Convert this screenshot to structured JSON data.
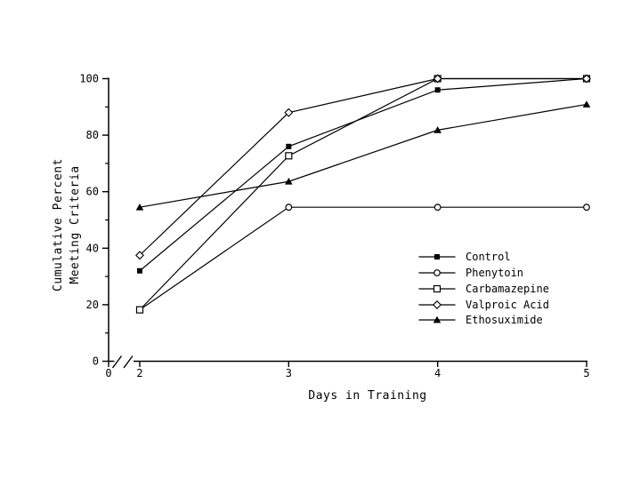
{
  "chart_data": {
    "type": "line",
    "title": "",
    "xlabel": "Days in Training",
    "ylabel": "Cumulative Percent Meeting Criteria",
    "ylabel_lines": [
      "Cumulative Percent",
      "Meeting Criteria"
    ],
    "x": [
      2,
      3,
      4,
      5
    ],
    "series": [
      {
        "name": "Control",
        "marker": "filled-square",
        "values": [
          32,
          76,
          96,
          100
        ]
      },
      {
        "name": "Phenytoin",
        "marker": "open-circle",
        "values": [
          18.2,
          54.5,
          54.5,
          54.5
        ]
      },
      {
        "name": "Carbamazepine",
        "marker": "open-square",
        "values": [
          18.2,
          72.7,
          100,
          100
        ]
      },
      {
        "name": "Valproic Acid",
        "marker": "open-diamond",
        "values": [
          37.5,
          88,
          100,
          100
        ]
      },
      {
        "name": "Ethosuximide",
        "marker": "filled-triangle",
        "values": [
          54.5,
          63.6,
          81.8,
          90.9
        ]
      }
    ],
    "xlim": [
      0,
      5
    ],
    "ylim": [
      0,
      100
    ],
    "xticks": [
      0,
      2,
      3,
      4,
      5
    ],
    "yticks_major": [
      0,
      20,
      40,
      60,
      80,
      100
    ],
    "yticks_minor": [
      10,
      30,
      50,
      70,
      90
    ],
    "x_axis_break_between": [
      0,
      2
    ],
    "grid": false,
    "legend_position": "center-right",
    "line_color": "#000000",
    "background_color": "#ffffff"
  }
}
